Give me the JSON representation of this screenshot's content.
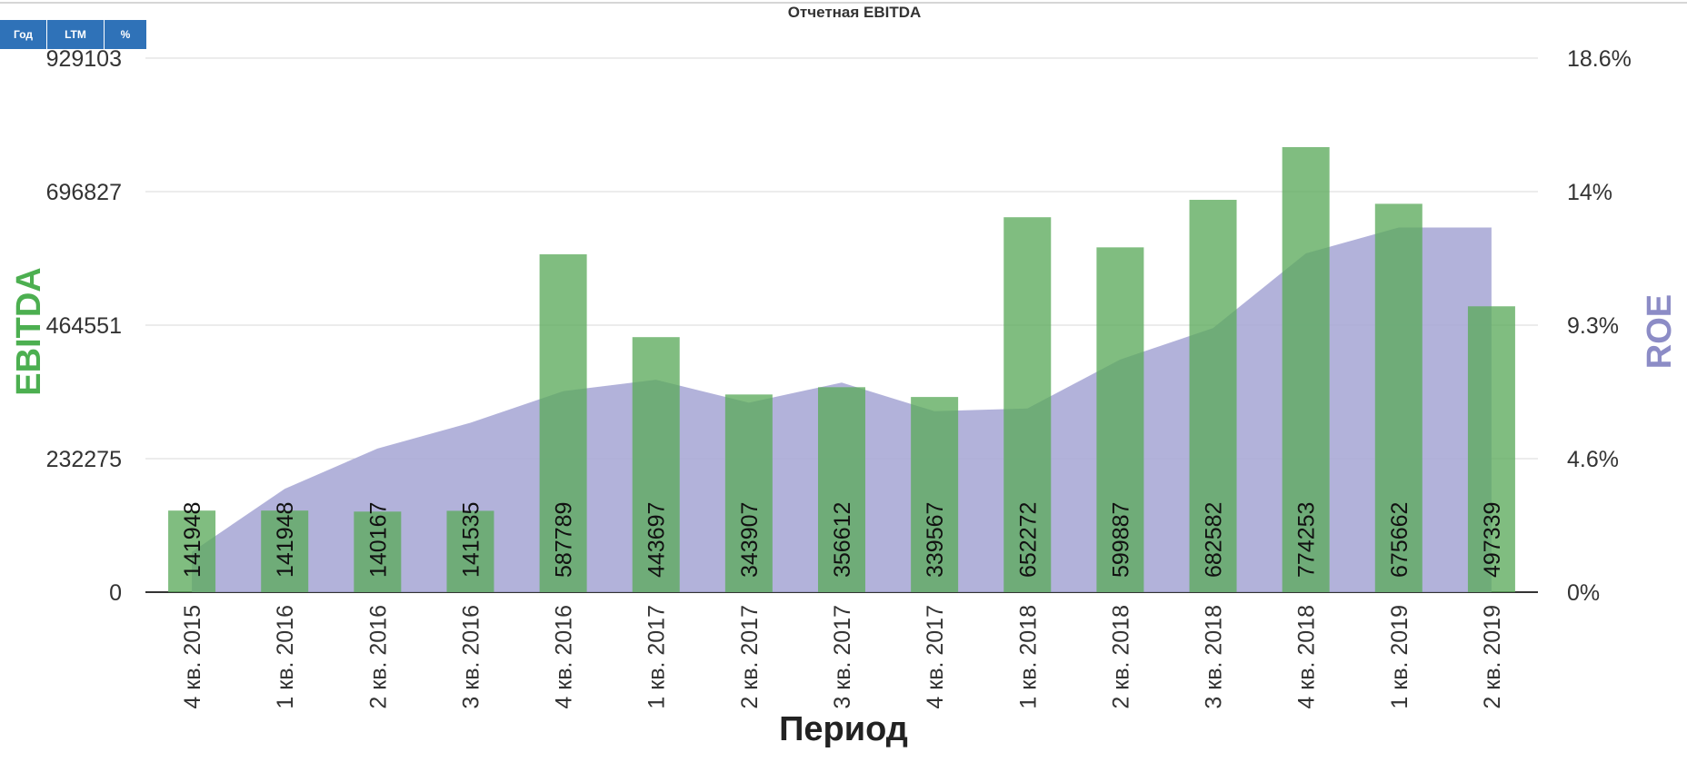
{
  "toolbar": {
    "year_label": "Год",
    "ltm_label": "LTM",
    "percent_label": "%"
  },
  "chart_data": {
    "type": "bar",
    "title": "Отчетная EBITDA",
    "xlabel": "Период",
    "ylabel": "EBITDA",
    "y2label": "ROE",
    "categories": [
      "4 кв. 2015",
      "1 кв. 2016",
      "2 кв. 2016",
      "3 кв. 2016",
      "4 кв. 2016",
      "1 кв. 2017",
      "2 кв. 2017",
      "3 кв. 2017",
      "4 кв. 2017",
      "1 кв. 2018",
      "2 кв. 2018",
      "3 кв. 2018",
      "4 кв. 2018",
      "1 кв. 2019",
      "2 кв. 2019"
    ],
    "series": [
      {
        "name": "EBITDA",
        "type": "bar",
        "axis": "left",
        "values": [
          141948,
          141948,
          140167,
          141535,
          587789,
          443697,
          343907,
          356612,
          339567,
          652272,
          599887,
          682582,
          774253,
          675662,
          497339
        ]
      },
      {
        "name": "ROE",
        "type": "area",
        "axis": "right",
        "values": [
          1.4,
          3.6,
          5.0,
          5.9,
          7.0,
          7.4,
          6.6,
          7.3,
          6.3,
          6.4,
          8.1,
          9.2,
          11.8,
          12.7,
          12.7
        ]
      }
    ],
    "ylim": [
      0,
      929103
    ],
    "y_ticks": [
      0,
      232275,
      464551,
      696827,
      929103
    ],
    "y2lim": [
      0,
      18.6
    ],
    "y2_ticks": [
      "0%",
      "4.6%",
      "9.3%",
      "14%",
      "18.6%"
    ],
    "colors": {
      "EBITDA": "#5cab5c",
      "ROE": "#aaaad6",
      "grid": "#d9d9d9",
      "axis": "#333333",
      "ylabel_color": "#4caf50",
      "y2label_color": "#8c8cc6"
    },
    "grid": true
  }
}
